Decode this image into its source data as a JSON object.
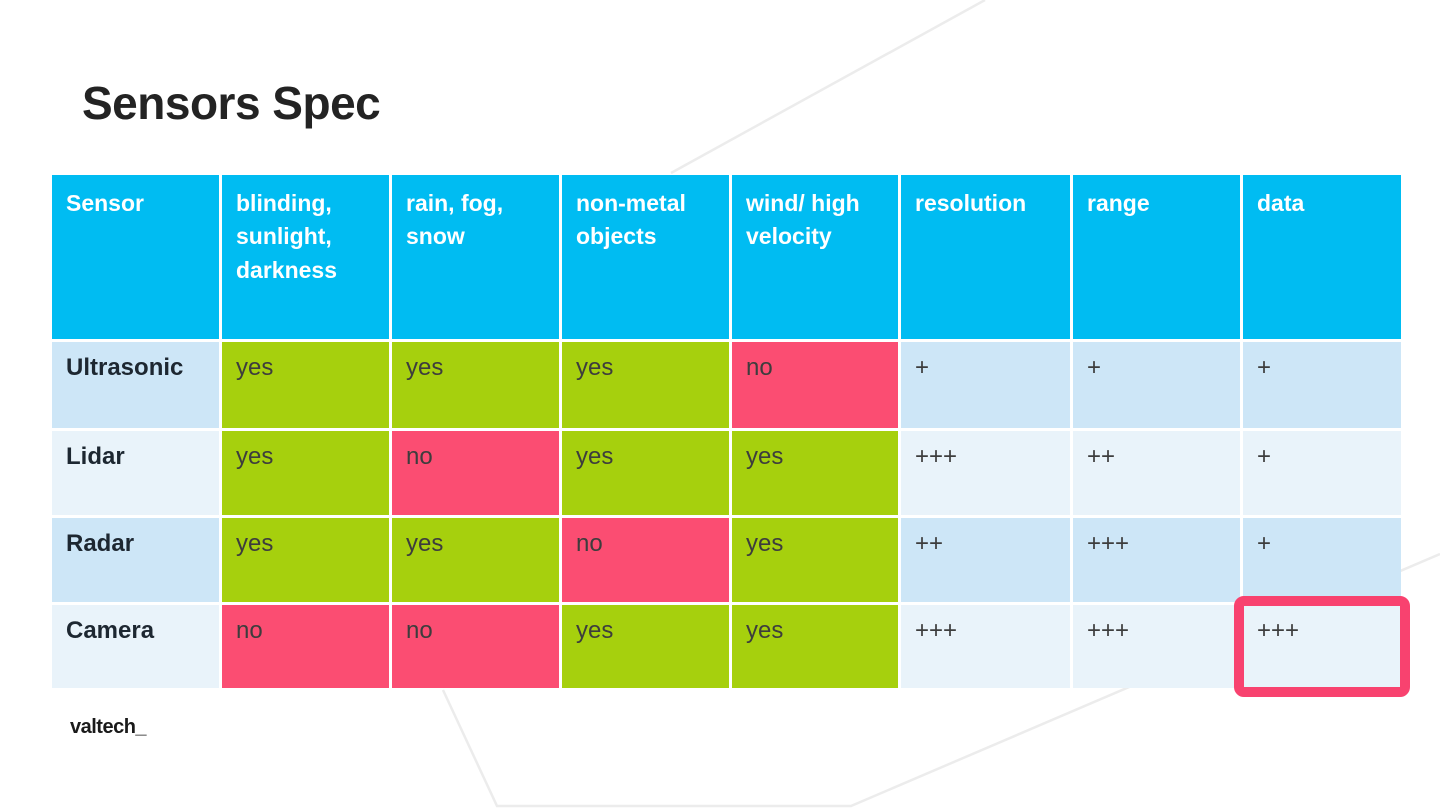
{
  "slide": {
    "title": "Sensors Spec",
    "brand_logo": "valtech_"
  },
  "colors": {
    "header_bg": "#00bcf2",
    "yes_green": "#a6d00d",
    "no_pink": "#fb4d72",
    "row_band_a": "#cde6f7",
    "row_band_b": "#e9f3fa",
    "highlight_ring": "#f8426f",
    "background_line": "#ececec"
  },
  "chart_data": {
    "type": "table",
    "title": "Sensors Spec",
    "columns": [
      "Sensor",
      "blinding, sunlight, darkness",
      "rain, fog, snow",
      "non-metal objects",
      "wind/ high velocity",
      "resolution",
      "range",
      "data"
    ],
    "rows": [
      {
        "label": "Ultrasonic",
        "cells": [
          {
            "text": "yes",
            "type": "yes"
          },
          {
            "text": "yes",
            "type": "yes"
          },
          {
            "text": "yes",
            "type": "yes"
          },
          {
            "text": "no",
            "type": "no"
          },
          {
            "text": "+",
            "type": "neutral"
          },
          {
            "text": "+",
            "type": "neutral"
          },
          {
            "text": "+",
            "type": "neutral"
          }
        ]
      },
      {
        "label": "Lidar",
        "cells": [
          {
            "text": "yes",
            "type": "yes"
          },
          {
            "text": "no",
            "type": "no"
          },
          {
            "text": "yes",
            "type": "yes"
          },
          {
            "text": "yes",
            "type": "yes"
          },
          {
            "text": "+++",
            "type": "neutral"
          },
          {
            "text": "++",
            "type": "neutral"
          },
          {
            "text": "+",
            "type": "neutral"
          }
        ]
      },
      {
        "label": "Radar",
        "cells": [
          {
            "text": "yes",
            "type": "yes"
          },
          {
            "text": "yes",
            "type": "yes"
          },
          {
            "text": "no",
            "type": "no"
          },
          {
            "text": "yes",
            "type": "yes"
          },
          {
            "text": "++",
            "type": "neutral"
          },
          {
            "text": "+++",
            "type": "neutral"
          },
          {
            "text": "+",
            "type": "neutral"
          }
        ]
      },
      {
        "label": "Camera",
        "cells": [
          {
            "text": "no",
            "type": "no"
          },
          {
            "text": "no",
            "type": "no"
          },
          {
            "text": "yes",
            "type": "yes"
          },
          {
            "text": "yes",
            "type": "yes"
          },
          {
            "text": "+++",
            "type": "neutral"
          },
          {
            "text": "+++",
            "type": "neutral"
          },
          {
            "text": "+++",
            "type": "neutral",
            "highlighted": true
          }
        ]
      }
    ],
    "highlight": {
      "row": "Camera",
      "column": "data"
    }
  }
}
